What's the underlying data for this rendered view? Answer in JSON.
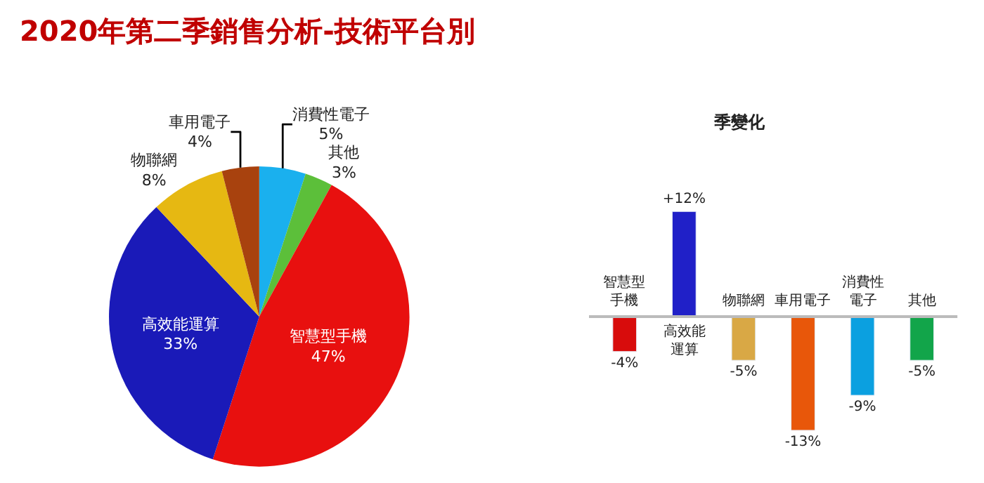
{
  "chart_data": [
    {
      "type": "pie",
      "title": "2020年第二季銷售分析-技術平台別",
      "categories": [
        "消費性電子",
        "其他",
        "智慧型手機",
        "高效能運算",
        "物聯網",
        "車用電子"
      ],
      "values": [
        5,
        3,
        47,
        33,
        8,
        4
      ],
      "value_labels": [
        "5%",
        "3%",
        "47%",
        "33%",
        "8%",
        "4%"
      ],
      "colors": [
        "#1ab0ee",
        "#5cbf3a",
        "#e8100f",
        "#1a1ab8",
        "#e6b812",
        "#a8420e"
      ],
      "legend": false
    },
    {
      "type": "bar",
      "title": "季變化",
      "categories": [
        "智慧型手機",
        "高效能運算",
        "物聯網",
        "車用電子",
        "消費性電子",
        "其他"
      ],
      "values": [
        -4,
        12,
        -5,
        -13,
        -9,
        -5
      ],
      "value_labels": [
        "-4%",
        "+12%",
        "-5%",
        "-13%",
        "-9%",
        "-5%"
      ],
      "colors": [
        "#d80c0c",
        "#2020c8",
        "#d9a845",
        "#e8570a",
        "#0ba0e0",
        "#12a54a"
      ],
      "legend": false
    }
  ]
}
